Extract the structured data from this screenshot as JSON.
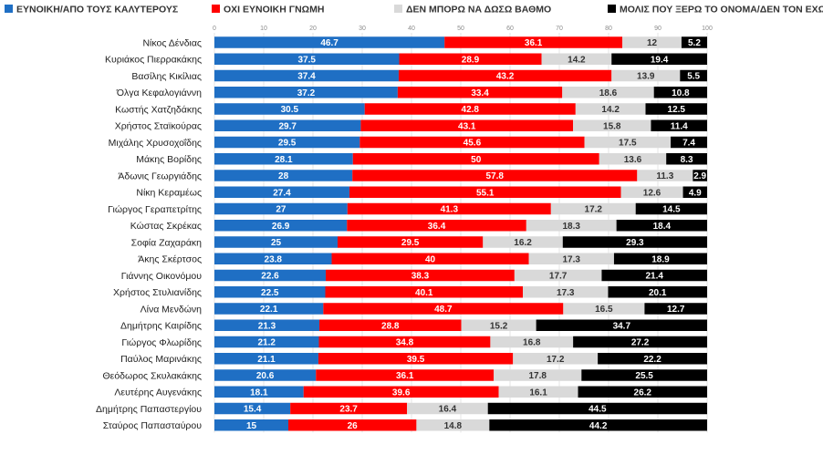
{
  "chart_data": {
    "type": "bar",
    "orientation": "horizontal",
    "stacked": true,
    "title": "",
    "xlabel": "",
    "ylabel": "",
    "xlim": [
      0,
      100
    ],
    "xticks": [
      0,
      10,
      20,
      30,
      40,
      50,
      60,
      70,
      80,
      90,
      100
    ],
    "grid": true,
    "legend_position": "top",
    "categories": [
      "Νίκος Δένδιας",
      "Κυριάκος Πιερρακάκης",
      "Βασίλης Κικίλιας",
      "Όλγα Κεφαλογιάννη",
      "Κωστής Χατζηδάκης",
      "Χρήστος Σταϊκούρας",
      "Μιχάλης Χρυσοχοΐδης",
      "Μάκης Βορίδης",
      "Άδωνις Γεωργιάδης",
      "Νίκη Κεραμέως",
      "Γιώργος Γεραπετρίτης",
      "Κώστας Σκρέκας",
      "Σοφία Ζαχαράκη",
      "Άκης Σκέρτσος",
      "Γιάννης Οικονόμου",
      "Χρήστος Στυλιανίδης",
      "Λίνα Μενδώνη",
      "Δημήτρης Καιρίδης",
      "Γιώργος Φλωρίδης",
      "Παύλος Μαρινάκης",
      "Θεόδωρος Σκυλακάκης",
      "Λευτέρης Αυγενάκης",
      "Δημήτρης Παπαστεργίου",
      "Σταύρος Παπασταύρου"
    ],
    "series": [
      {
        "name": "ΕΥΝΟΙΚΗ/ΑΠΟ ΤΟΥΣ ΚΑΛΥΤΕΡΟΥΣ",
        "color": "#1f6fc4",
        "text_color": "#ffffff",
        "values": [
          46.7,
          37.5,
          37.4,
          37.2,
          30.5,
          29.7,
          29.5,
          28.1,
          28,
          27.4,
          27,
          26.9,
          25,
          23.8,
          22.6,
          22.5,
          22.1,
          21.3,
          21.2,
          21.1,
          20.6,
          18.1,
          15.4,
          15
        ]
      },
      {
        "name": "ΟΧΙ ΕΥΝΟΙΚΗ ΓΝΩΜΗ",
        "color": "#ff0000",
        "text_color": "#ffffff",
        "values": [
          36.1,
          28.9,
          43.2,
          33.4,
          42.8,
          43.1,
          45.6,
          50,
          57.8,
          55.1,
          41.3,
          36.4,
          29.5,
          40,
          38.3,
          40.1,
          48.7,
          28.8,
          34.8,
          39.5,
          36.1,
          39.6,
          23.7,
          26
        ]
      },
      {
        "name": "ΔΕΝ ΜΠΟΡΩ ΝΑ ΔΩΣΩ ΒΑΘΜΟ",
        "color": "#d9d9d9",
        "text_color": "#333333",
        "values": [
          12,
          14.2,
          13.9,
          18.6,
          14.2,
          15.8,
          17.5,
          13.6,
          11.3,
          12.6,
          17.2,
          18.3,
          16.2,
          17.3,
          17.7,
          17.3,
          16.5,
          15.2,
          16.8,
          17.2,
          17.8,
          16.1,
          16.4,
          14.8
        ]
      },
      {
        "name": "ΜΟΛΙΣ ΠΟΥ ΞΕΡΩ ΤΟ ΟΝΟΜΑ/ΔΕΝ ΤΟΝ ΕΧΩ ΑΚΟΥΣΤΑ/ΔΞ/ΔΑ",
        "color": "#000000",
        "text_color": "#ffffff",
        "values": [
          5.2,
          19.4,
          5.5,
          10.8,
          12.5,
          11.4,
          7.4,
          8.3,
          2.9,
          4.9,
          14.5,
          18.4,
          29.3,
          18.9,
          21.4,
          20.1,
          12.7,
          34.7,
          27.2,
          22.2,
          25.5,
          26.2,
          44.5,
          44.2
        ]
      }
    ]
  }
}
